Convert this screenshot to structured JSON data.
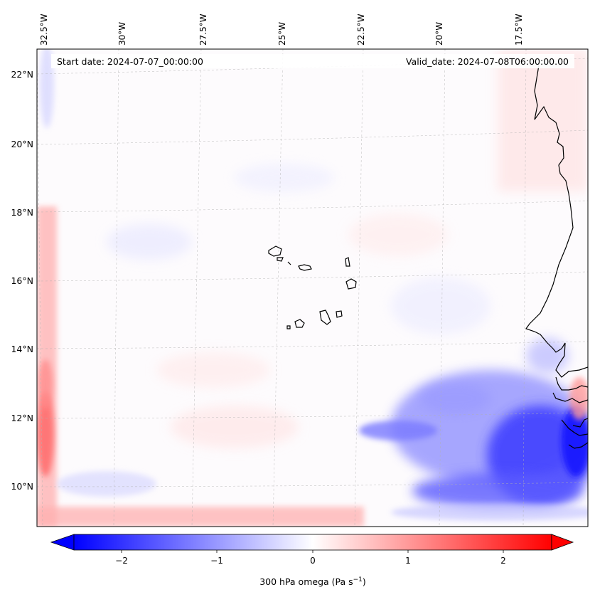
{
  "header": {
    "start_date": "Start date: 2024-07-07_00:00:00",
    "valid_date": "Valid_date: 2024-07-08T06:00:00.00"
  },
  "map": {
    "lon_labels": [
      "32.5°W",
      "30°W",
      "27.5°W",
      "25°W",
      "22.5°W",
      "20°W",
      "17.5°W"
    ],
    "lat_labels": [
      "22°N",
      "20°N",
      "18°N",
      "16°N",
      "14°N",
      "12°N",
      "10°N"
    ],
    "gridlines": true,
    "coastline_color": "#000000"
  },
  "colorbar": {
    "label_text": "300 hPa omega (Pa s",
    "label_sup": "−1",
    "label_close": ")",
    "ticks": [
      "−2",
      "−1",
      "0",
      "1",
      "2"
    ],
    "min_color": "#0000ff",
    "mid_color": "#ffffff",
    "max_color": "#ff0000",
    "extend": "both"
  }
}
